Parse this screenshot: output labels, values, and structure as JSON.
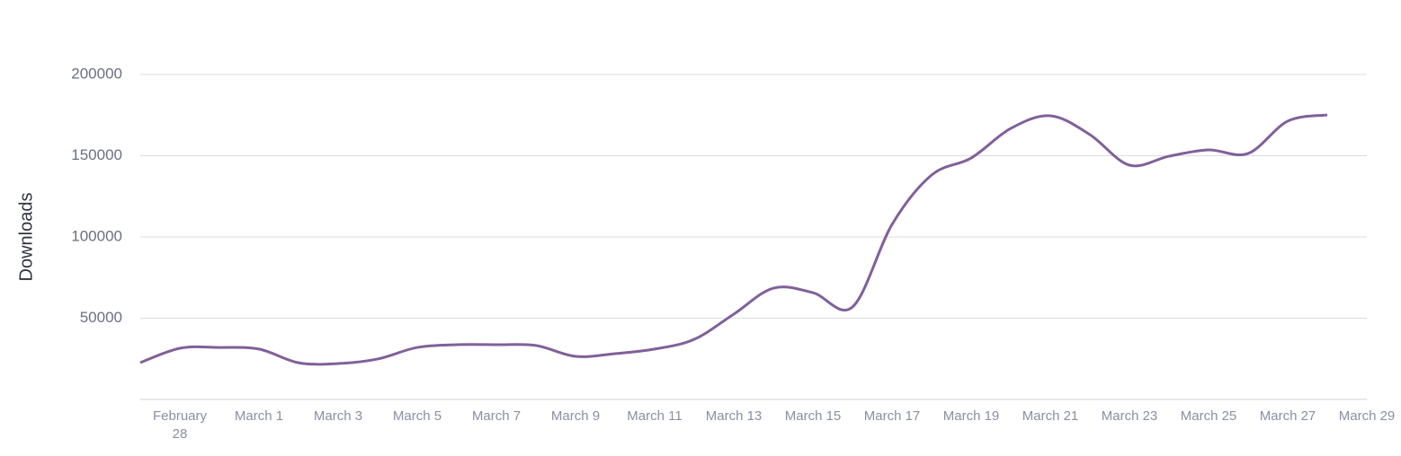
{
  "chart_data": {
    "type": "line",
    "y_label": "Downloads",
    "categories": [
      null,
      "February 28",
      null,
      "March 1",
      null,
      "March 3",
      null,
      "March 5",
      null,
      "March 7",
      null,
      "March 9",
      null,
      "March 11",
      null,
      "March 13",
      null,
      "March 15",
      null,
      "March 17",
      null,
      "March 19",
      null,
      "March 21",
      null,
      "March 23",
      null,
      "March 25",
      null,
      "March 27",
      null,
      "March 29"
    ],
    "series": [
      {
        "name": "Downloads",
        "color": "#80609a",
        "values": [
          22650,
          31500,
          32000,
          31000,
          22600,
          22100,
          24900,
          32000,
          33700,
          33700,
          33200,
          26500,
          28200,
          31000,
          37000,
          52500,
          68500,
          65700,
          56900,
          107700,
          138100,
          148600,
          166800,
          174600,
          163000,
          144200,
          149700,
          153600,
          151400,
          171300,
          175100,
          null
        ]
      }
    ],
    "ylim": [
      0,
      200000
    ],
    "yticks": [
      50000,
      100000,
      150000,
      200000
    ],
    "grid": true
  }
}
